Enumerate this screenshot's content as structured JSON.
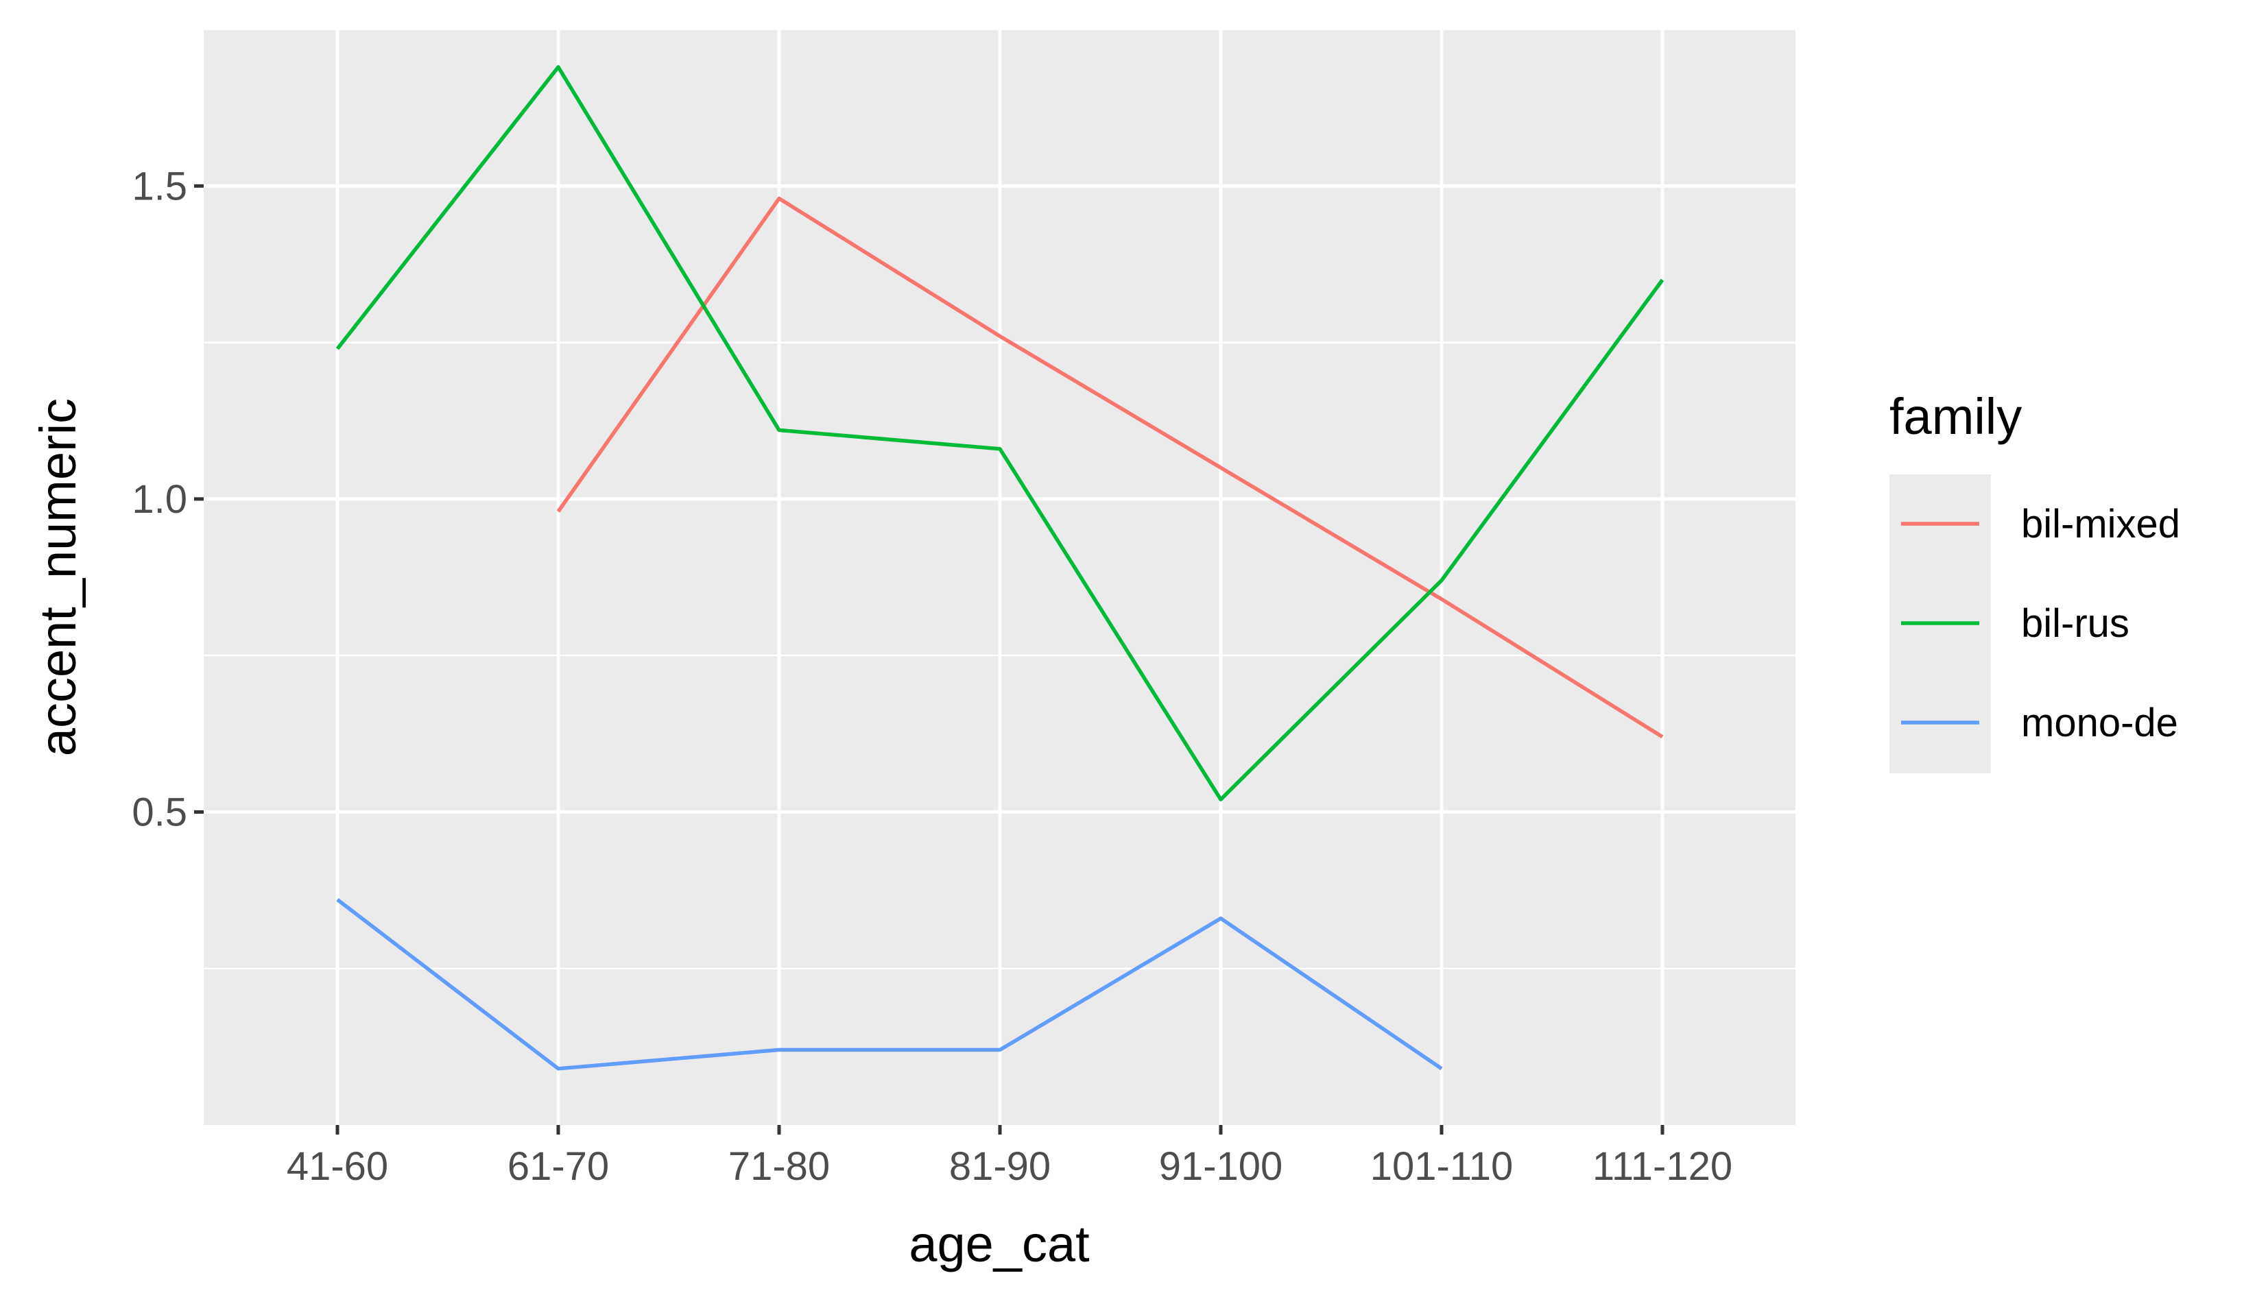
{
  "chart_data": {
    "type": "line",
    "title": "",
    "xlabel": "age_cat",
    "ylabel": "accent_numeric",
    "categories": [
      "41-60",
      "61-70",
      "71-80",
      "81-90",
      "91-100",
      "101-110",
      "111-120"
    ],
    "ylim": [
      0.0,
      1.75
    ],
    "yticks": [
      0.5,
      1.0,
      1.5
    ],
    "ytick_labels": [
      "0.5",
      "1.0",
      "1.5"
    ],
    "grid": true,
    "legend": {
      "title": "family",
      "position": "right"
    },
    "series": [
      {
        "name": "bil-mixed",
        "color": "#F8766D",
        "values": [
          null,
          0.98,
          1.48,
          1.26,
          1.05,
          0.84,
          0.62
        ]
      },
      {
        "name": "bil-rus",
        "color": "#00BA38",
        "values": [
          1.24,
          1.69,
          1.11,
          1.08,
          0.52,
          0.87,
          1.35
        ]
      },
      {
        "name": "mono-de",
        "color": "#619CFF",
        "values": [
          0.36,
          0.09,
          0.12,
          0.12,
          0.33,
          0.09,
          null
        ]
      }
    ]
  }
}
